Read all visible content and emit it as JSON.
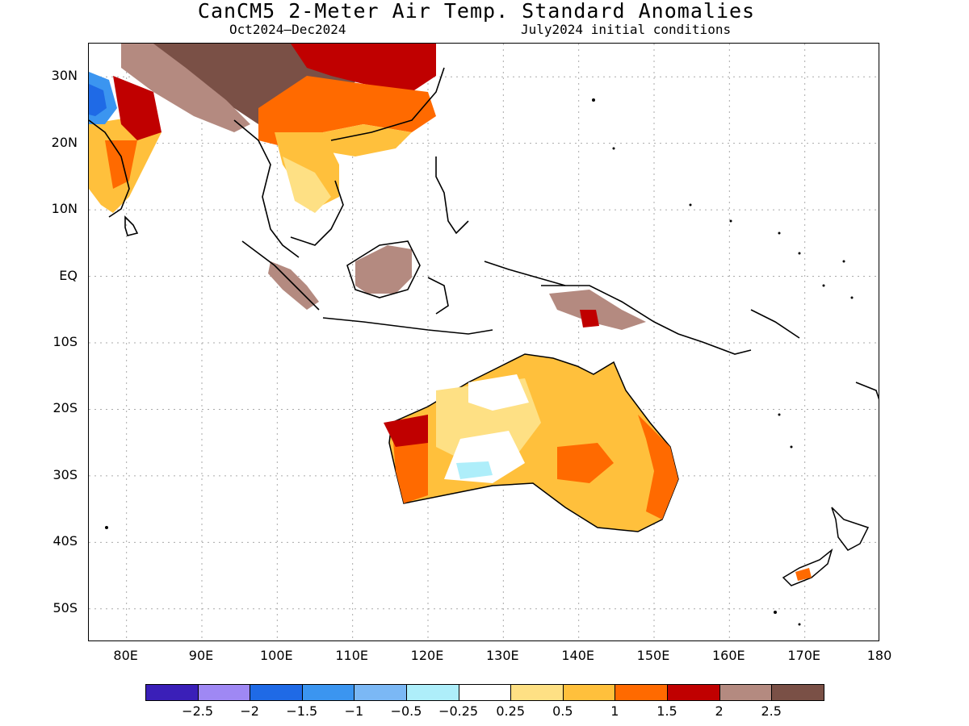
{
  "title": "CanCM5 2-Meter Air Temp. Standard Anomalies",
  "subtitle_left": "Oct2024–Dec2024",
  "subtitle_right": "July2024 initial conditions",
  "map": {
    "projection": "cylindrical equidistant",
    "lon_range": [
      75,
      180
    ],
    "lat_range": [
      -55,
      35
    ],
    "grid": "dotted",
    "lat_labels": [
      "30N",
      "20N",
      "10N",
      "EQ",
      "10S",
      "20S",
      "30S",
      "40S",
      "50S"
    ],
    "lon_labels": [
      "80E",
      "90E",
      "100E",
      "110E",
      "120E",
      "130E",
      "140E",
      "150E",
      "160E",
      "170E",
      "180"
    ]
  },
  "legend": {
    "colors": [
      "#3a1fb8",
      "#9f88f4",
      "#1f6ae6",
      "#3b95f0",
      "#7bb8f5",
      "#aeeefa",
      "#ffffff",
      "#fee084",
      "#ffc03c",
      "#ff6a00",
      "#c00000",
      "#b48a80",
      "#7a5046"
    ],
    "tick_labels": [
      "−2.5",
      "−2",
      "−1.5",
      "−1",
      "−0.5",
      "−0.25",
      "0.25",
      "0.5",
      "1",
      "1.5",
      "2",
      "2.5"
    ]
  }
}
